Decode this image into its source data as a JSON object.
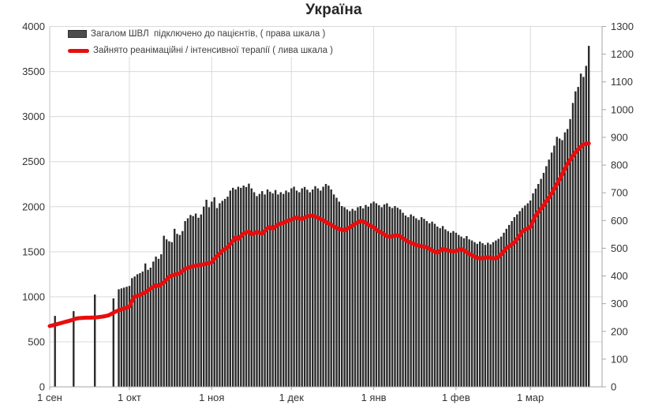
{
  "chart_data": {
    "type": "bar+line",
    "title": "Україна",
    "legend": [
      {
        "label": "Загалом ШВЛ  підключено до пацієнтів, ( права шкала )",
        "series": "bars",
        "color": "#4d4d4d"
      },
      {
        "label": "Зайнято реанімаційні / інтенсивної терапії ( лива шкала )",
        "series": "line",
        "color": "#e80d0d"
      }
    ],
    "left_axis": {
      "min": 0,
      "max": 4000,
      "step": 500,
      "ticks": [
        "0",
        "500",
        "1000",
        "1500",
        "2000",
        "2500",
        "3000",
        "3500",
        "4000"
      ]
    },
    "right_axis": {
      "min": 0,
      "max": 1300,
      "step": 100,
      "ticks": [
        "0",
        "100",
        "200",
        "300",
        "400",
        "500",
        "600",
        "700",
        "800",
        "900",
        "1000",
        "1100",
        "1200",
        "1300"
      ]
    },
    "x_axis": {
      "labels": [
        "1 сен",
        "1 окт",
        "1 ноя",
        "1 дек",
        "1 янв",
        "1 фев",
        "1 мар"
      ],
      "label_day_offsets": [
        0,
        30,
        61,
        91,
        122,
        153,
        181
      ],
      "days_total": 208
    },
    "bars": {
      "name": "Загалом ШВЛ підключено до пацієнтів",
      "scale": "right",
      "color": "#2b2b2b",
      "weekly_points": [
        [
          2,
          256
        ],
        [
          9,
          273
        ],
        [
          17,
          333
        ],
        [
          24,
          319
        ]
      ],
      "daily_start_day": 26,
      "daily_values": [
        352,
        355,
        358,
        361,
        364,
        392,
        398,
        406,
        410,
        416,
        445,
        422,
        430,
        452,
        470,
        462,
        478,
        545,
        532,
        525,
        522,
        570,
        552,
        548,
        562,
        598,
        608,
        620,
        616,
        625,
        610,
        622,
        650,
        675,
        648,
        668,
        684,
        645,
        662,
        671,
        678,
        686,
        708,
        718,
        712,
        722,
        718,
        726,
        721,
        733,
        716,
        702,
        688,
        696,
        706,
        694,
        712,
        704,
        698,
        710,
        694,
        702,
        696,
        708,
        702,
        716,
        722,
        708,
        702,
        716,
        721,
        711,
        702,
        712,
        724,
        716,
        708,
        722,
        732,
        726,
        712,
        694,
        682,
        668,
        652,
        648,
        640,
        634,
        642,
        636,
        648,
        652,
        644,
        656,
        650,
        662,
        668,
        662,
        655,
        648,
        658,
        662,
        650,
        645,
        652,
        646,
        640,
        628,
        618,
        612,
        622,
        616,
        608,
        602,
        612,
        606,
        598,
        590,
        596,
        588,
        578,
        572,
        580,
        568,
        562,
        556,
        562,
        556,
        548,
        542,
        536,
        544,
        532,
        528,
        522,
        516,
        524,
        518,
        512,
        520,
        514,
        522,
        528,
        534,
        542,
        556,
        570,
        584,
        598,
        612,
        622,
        634,
        645,
        654,
        662,
        672,
        698,
        715,
        732,
        750,
        772,
        796,
        820,
        845,
        870,
        902,
        896,
        890,
        918,
        930,
        966,
        1024,
        1066,
        1082,
        1130,
        1118,
        1158,
        1230
      ]
    },
    "line": {
      "name": "Зайнято реанімаційні / інтенсивної терапії",
      "scale": "left",
      "color": "#e80d0d",
      "start_day": 0,
      "values": [
        675,
        682,
        690,
        698,
        706,
        714,
        722,
        730,
        738,
        748,
        758,
        762,
        765,
        767,
        768,
        768,
        769,
        770,
        772,
        776,
        780,
        786,
        792,
        806,
        822,
        838,
        850,
        860,
        870,
        880,
        890,
        955,
        1000,
        1010,
        1020,
        1035,
        1050,
        1070,
        1090,
        1110,
        1130,
        1118,
        1140,
        1160,
        1190,
        1220,
        1235,
        1245,
        1252,
        1260,
        1285,
        1310,
        1320,
        1330,
        1338,
        1345,
        1350,
        1355,
        1360,
        1368,
        1374,
        1382,
        1420,
        1450,
        1480,
        1510,
        1530,
        1550,
        1585,
        1620,
        1660,
        1640,
        1670,
        1700,
        1715,
        1722,
        1692,
        1705,
        1720,
        1710,
        1700,
        1730,
        1760,
        1775,
        1755,
        1780,
        1800,
        1812,
        1820,
        1835,
        1845,
        1856,
        1870,
        1880,
        1870,
        1862,
        1878,
        1892,
        1898,
        1900,
        1888,
        1878,
        1862,
        1850,
        1830,
        1812,
        1800,
        1780,
        1762,
        1752,
        1745,
        1738,
        1755,
        1770,
        1790,
        1810,
        1825,
        1840,
        1835,
        1820,
        1800,
        1785,
        1770,
        1745,
        1725,
        1710,
        1692,
        1672,
        1665,
        1672,
        1680,
        1682,
        1670,
        1650,
        1630,
        1612,
        1598,
        1588,
        1575,
        1568,
        1560,
        1555,
        1548,
        1532,
        1515,
        1500,
        1490,
        1510,
        1532,
        1522,
        1512,
        1508,
        1505,
        1505,
        1520,
        1530,
        1515,
        1495,
        1475,
        1462,
        1445,
        1430,
        1428,
        1425,
        1432,
        1440,
        1432,
        1425,
        1428,
        1442,
        1470,
        1505,
        1540,
        1560,
        1580,
        1603,
        1640,
        1680,
        1726,
        1745,
        1758,
        1775,
        1840,
        1901,
        1940,
        1978,
        2015,
        2060,
        2100,
        2147,
        2200,
        2250,
        2304,
        2360,
        2420,
        2479,
        2520,
        2565,
        2602,
        2635,
        2665,
        2690,
        2698,
        2702
      ]
    },
    "colors": {
      "gridline": "#d9d9d9",
      "axis": "#a6a6a6",
      "tick_text": "#333333"
    }
  }
}
